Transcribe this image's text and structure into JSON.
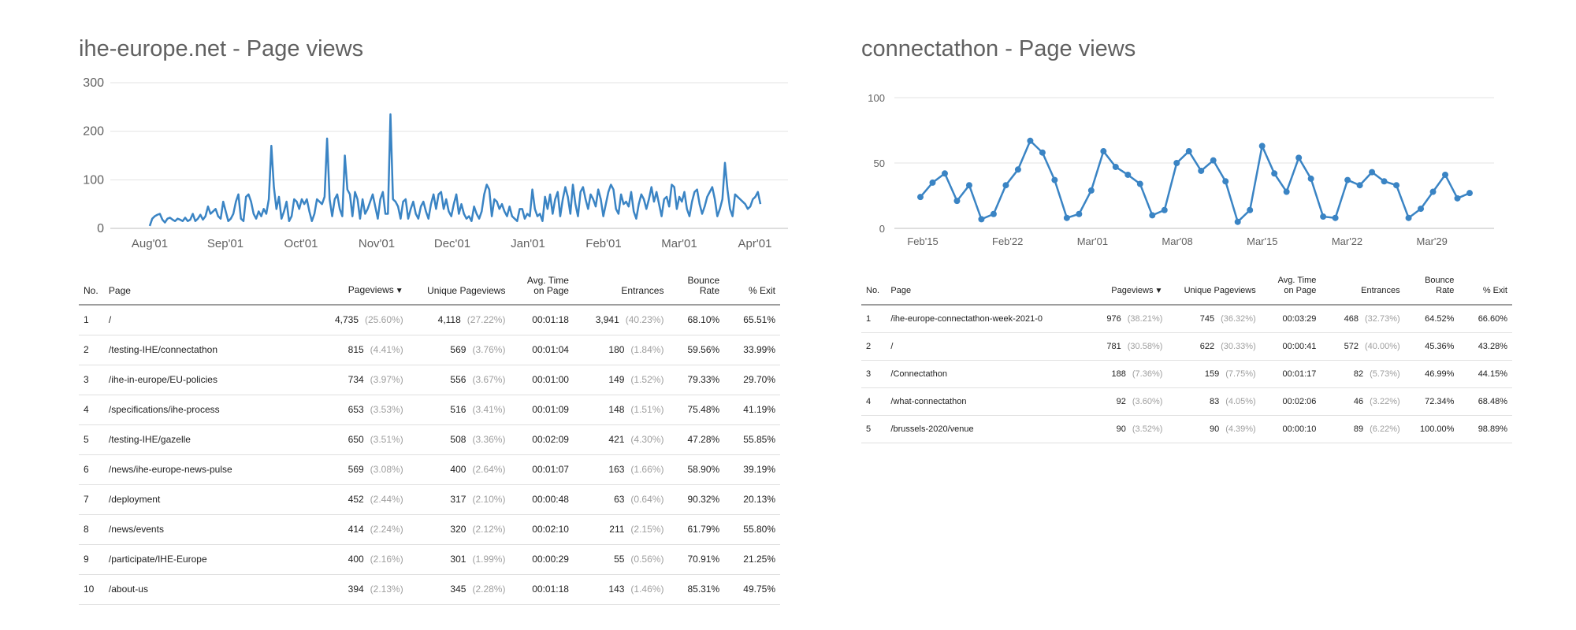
{
  "panels": [
    {
      "title": "ihe-europe.net - Page views",
      "table": {
        "headers": {
          "no": "No.",
          "page": "Page",
          "pageviews": "Pageviews",
          "unique": "Unique Pageviews",
          "avg_time_1": "Avg. Time",
          "avg_time_2": "on Page",
          "entrances": "Entrances",
          "bounce_1": "Bounce",
          "bounce_2": "Rate",
          "exit": "% Exit"
        },
        "rows": [
          {
            "no": "1",
            "page": "/",
            "pageviews": "4,735",
            "pageviews_pct": "(25.60%)",
            "unique": "4,118",
            "unique_pct": "(27.22%)",
            "avg_time": "00:01:18",
            "entrances": "3,941",
            "entrances_pct": "(40.23%)",
            "bounce": "68.10%",
            "exit": "65.51%"
          },
          {
            "no": "2",
            "page": "/testing-IHE/connectathon",
            "pageviews": "815",
            "pageviews_pct": "(4.41%)",
            "unique": "569",
            "unique_pct": "(3.76%)",
            "avg_time": "00:01:04",
            "entrances": "180",
            "entrances_pct": "(1.84%)",
            "bounce": "59.56%",
            "exit": "33.99%"
          },
          {
            "no": "3",
            "page": "/ihe-in-europe/EU-policies",
            "pageviews": "734",
            "pageviews_pct": "(3.97%)",
            "unique": "556",
            "unique_pct": "(3.67%)",
            "avg_time": "00:01:00",
            "entrances": "149",
            "entrances_pct": "(1.52%)",
            "bounce": "79.33%",
            "exit": "29.70%"
          },
          {
            "no": "4",
            "page": "/specifications/ihe-process",
            "pageviews": "653",
            "pageviews_pct": "(3.53%)",
            "unique": "516",
            "unique_pct": "(3.41%)",
            "avg_time": "00:01:09",
            "entrances": "148",
            "entrances_pct": "(1.51%)",
            "bounce": "75.48%",
            "exit": "41.19%"
          },
          {
            "no": "5",
            "page": "/testing-IHE/gazelle",
            "pageviews": "650",
            "pageviews_pct": "(3.51%)",
            "unique": "508",
            "unique_pct": "(3.36%)",
            "avg_time": "00:02:09",
            "entrances": "421",
            "entrances_pct": "(4.30%)",
            "bounce": "47.28%",
            "exit": "55.85%"
          },
          {
            "no": "6",
            "page": "/news/ihe-europe-news-pulse",
            "pageviews": "569",
            "pageviews_pct": "(3.08%)",
            "unique": "400",
            "unique_pct": "(2.64%)",
            "avg_time": "00:01:07",
            "entrances": "163",
            "entrances_pct": "(1.66%)",
            "bounce": "58.90%",
            "exit": "39.19%"
          },
          {
            "no": "7",
            "page": "/deployment",
            "pageviews": "452",
            "pageviews_pct": "(2.44%)",
            "unique": "317",
            "unique_pct": "(2.10%)",
            "avg_time": "00:00:48",
            "entrances": "63",
            "entrances_pct": "(0.64%)",
            "bounce": "90.32%",
            "exit": "20.13%"
          },
          {
            "no": "8",
            "page": "/news/events",
            "pageviews": "414",
            "pageviews_pct": "(2.24%)",
            "unique": "320",
            "unique_pct": "(2.12%)",
            "avg_time": "00:02:10",
            "entrances": "211",
            "entrances_pct": "(2.15%)",
            "bounce": "61.79%",
            "exit": "55.80%"
          },
          {
            "no": "9",
            "page": "/participate/IHE-Europe",
            "pageviews": "400",
            "pageviews_pct": "(2.16%)",
            "unique": "301",
            "unique_pct": "(1.99%)",
            "avg_time": "00:00:29",
            "entrances": "55",
            "entrances_pct": "(0.56%)",
            "bounce": "70.91%",
            "exit": "21.25%"
          },
          {
            "no": "10",
            "page": "/about-us",
            "pageviews": "394",
            "pageviews_pct": "(2.13%)",
            "unique": "345",
            "unique_pct": "(2.28%)",
            "avg_time": "00:01:18",
            "entrances": "143",
            "entrances_pct": "(1.46%)",
            "bounce": "85.31%",
            "exit": "49.75%"
          }
        ]
      }
    },
    {
      "title": "connectathon - Page views",
      "table": {
        "headers": {
          "no": "No.",
          "page": "Page",
          "pageviews": "Pageviews",
          "unique": "Unique Pageviews",
          "avg_time_1": "Avg. Time",
          "avg_time_2": "on Page",
          "entrances": "Entrances",
          "bounce_1": "Bounce",
          "bounce_2": "Rate",
          "exit": "% Exit"
        },
        "rows": [
          {
            "no": "1",
            "page": "/ihe-europe-connectathon-week-2021-0",
            "pageviews": "976",
            "pageviews_pct": "(38.21%)",
            "unique": "745",
            "unique_pct": "(36.32%)",
            "avg_time": "00:03:29",
            "entrances": "468",
            "entrances_pct": "(32.73%)",
            "bounce": "64.52%",
            "exit": "66.60%"
          },
          {
            "no": "2",
            "page": "/",
            "pageviews": "781",
            "pageviews_pct": "(30.58%)",
            "unique": "622",
            "unique_pct": "(30.33%)",
            "avg_time": "00:00:41",
            "entrances": "572",
            "entrances_pct": "(40.00%)",
            "bounce": "45.36%",
            "exit": "43.28%"
          },
          {
            "no": "3",
            "page": "/Connectathon",
            "pageviews": "188",
            "pageviews_pct": "(7.36%)",
            "unique": "159",
            "unique_pct": "(7.75%)",
            "avg_time": "00:01:17",
            "entrances": "82",
            "entrances_pct": "(5.73%)",
            "bounce": "46.99%",
            "exit": "44.15%"
          },
          {
            "no": "4",
            "page": "/what-connectathon",
            "pageviews": "92",
            "pageviews_pct": "(3.60%)",
            "unique": "83",
            "unique_pct": "(4.05%)",
            "avg_time": "00:02:06",
            "entrances": "46",
            "entrances_pct": "(3.22%)",
            "bounce": "72.34%",
            "exit": "68.48%"
          },
          {
            "no": "5",
            "page": "/brussels-2020/venue",
            "pageviews": "90",
            "pageviews_pct": "(3.52%)",
            "unique": "90",
            "unique_pct": "(4.39%)",
            "avg_time": "00:00:10",
            "entrances": "89",
            "entrances_pct": "(6.22%)",
            "bounce": "100.00%",
            "exit": "98.89%"
          }
        ]
      }
    }
  ],
  "chart_data": [
    {
      "type": "line",
      "title": "ihe-europe.net - Page views",
      "xlabel": "",
      "ylabel": "",
      "ylim": [
        0,
        300
      ],
      "yticks": [
        "0",
        "100",
        "200",
        "300"
      ],
      "xticks": [
        "Aug'01",
        "Sep'01",
        "Oct'01",
        "Nov'01",
        "Dec'01",
        "Jan'01",
        "Feb'01",
        "Mar'01",
        "Apr'01"
      ],
      "grid": true,
      "color": "#3a84c4",
      "values": [
        5,
        20,
        25,
        28,
        30,
        18,
        12,
        20,
        22,
        18,
        15,
        20,
        18,
        15,
        22,
        15,
        18,
        30,
        15,
        20,
        28,
        18,
        25,
        45,
        30,
        35,
        40,
        25,
        20,
        55,
        35,
        15,
        20,
        30,
        55,
        70,
        20,
        15,
        65,
        70,
        55,
        30,
        20,
        35,
        25,
        40,
        30,
        60,
        170,
        85,
        40,
        65,
        20,
        35,
        55,
        15,
        25,
        60,
        55,
        40,
        60,
        50,
        60,
        35,
        15,
        30,
        60,
        55,
        50,
        65,
        185,
        60,
        25,
        60,
        70,
        40,
        25,
        150,
        80,
        70,
        25,
        75,
        60,
        20,
        60,
        30,
        40,
        55,
        70,
        45,
        20,
        60,
        75,
        30,
        30,
        235,
        60,
        55,
        45,
        20,
        55,
        60,
        20,
        40,
        55,
        30,
        20,
        45,
        55,
        35,
        20,
        50,
        70,
        40,
        70,
        75,
        40,
        60,
        35,
        25,
        50,
        70,
        30,
        50,
        30,
        20,
        25,
        15,
        45,
        30,
        20,
        35,
        70,
        90,
        80,
        25,
        60,
        55,
        40,
        50,
        35,
        25,
        45,
        25,
        20,
        15,
        40,
        40,
        20,
        30,
        25,
        80,
        40,
        25,
        30,
        15,
        65,
        40,
        70,
        30,
        60,
        75,
        25,
        60,
        85,
        65,
        30,
        90,
        50,
        25,
        75,
        85,
        60,
        40,
        70,
        60,
        45,
        80,
        60,
        25,
        50,
        75,
        90,
        80,
        40,
        30,
        70,
        50,
        55,
        45,
        75,
        35,
        20,
        50,
        70,
        60,
        40,
        60,
        85,
        55,
        75,
        50,
        25,
        60,
        65,
        45,
        90,
        85,
        40,
        65,
        55,
        75,
        40,
        25,
        55,
        75,
        80,
        50,
        30,
        45,
        65,
        75,
        85,
        60,
        25,
        40,
        60,
        135,
        80,
        40,
        25,
        70,
        65,
        60,
        55,
        50,
        40,
        45,
        60,
        65,
        75,
        50
      ]
    },
    {
      "type": "line",
      "title": "connectathon - Page views",
      "xlabel": "",
      "ylabel": "",
      "ylim": [
        0,
        100
      ],
      "yticks": [
        "0",
        "50",
        "100"
      ],
      "xticks": [
        "Feb'15",
        "Feb'22",
        "Mar'01",
        "Mar'08",
        "Mar'15",
        "Mar'22",
        "Mar'29"
      ],
      "grid": true,
      "color": "#3a84c4",
      "markers": true,
      "values": [
        24,
        35,
        42,
        21,
        33,
        7,
        11,
        33,
        45,
        67,
        58,
        37,
        8,
        11,
        29,
        59,
        47,
        41,
        34,
        10,
        14,
        50,
        59,
        44,
        52,
        36,
        5,
        14,
        63,
        42,
        28,
        54,
        38,
        9,
        8,
        37,
        33,
        43,
        36,
        33,
        8,
        15,
        28,
        41,
        23,
        27
      ]
    }
  ]
}
